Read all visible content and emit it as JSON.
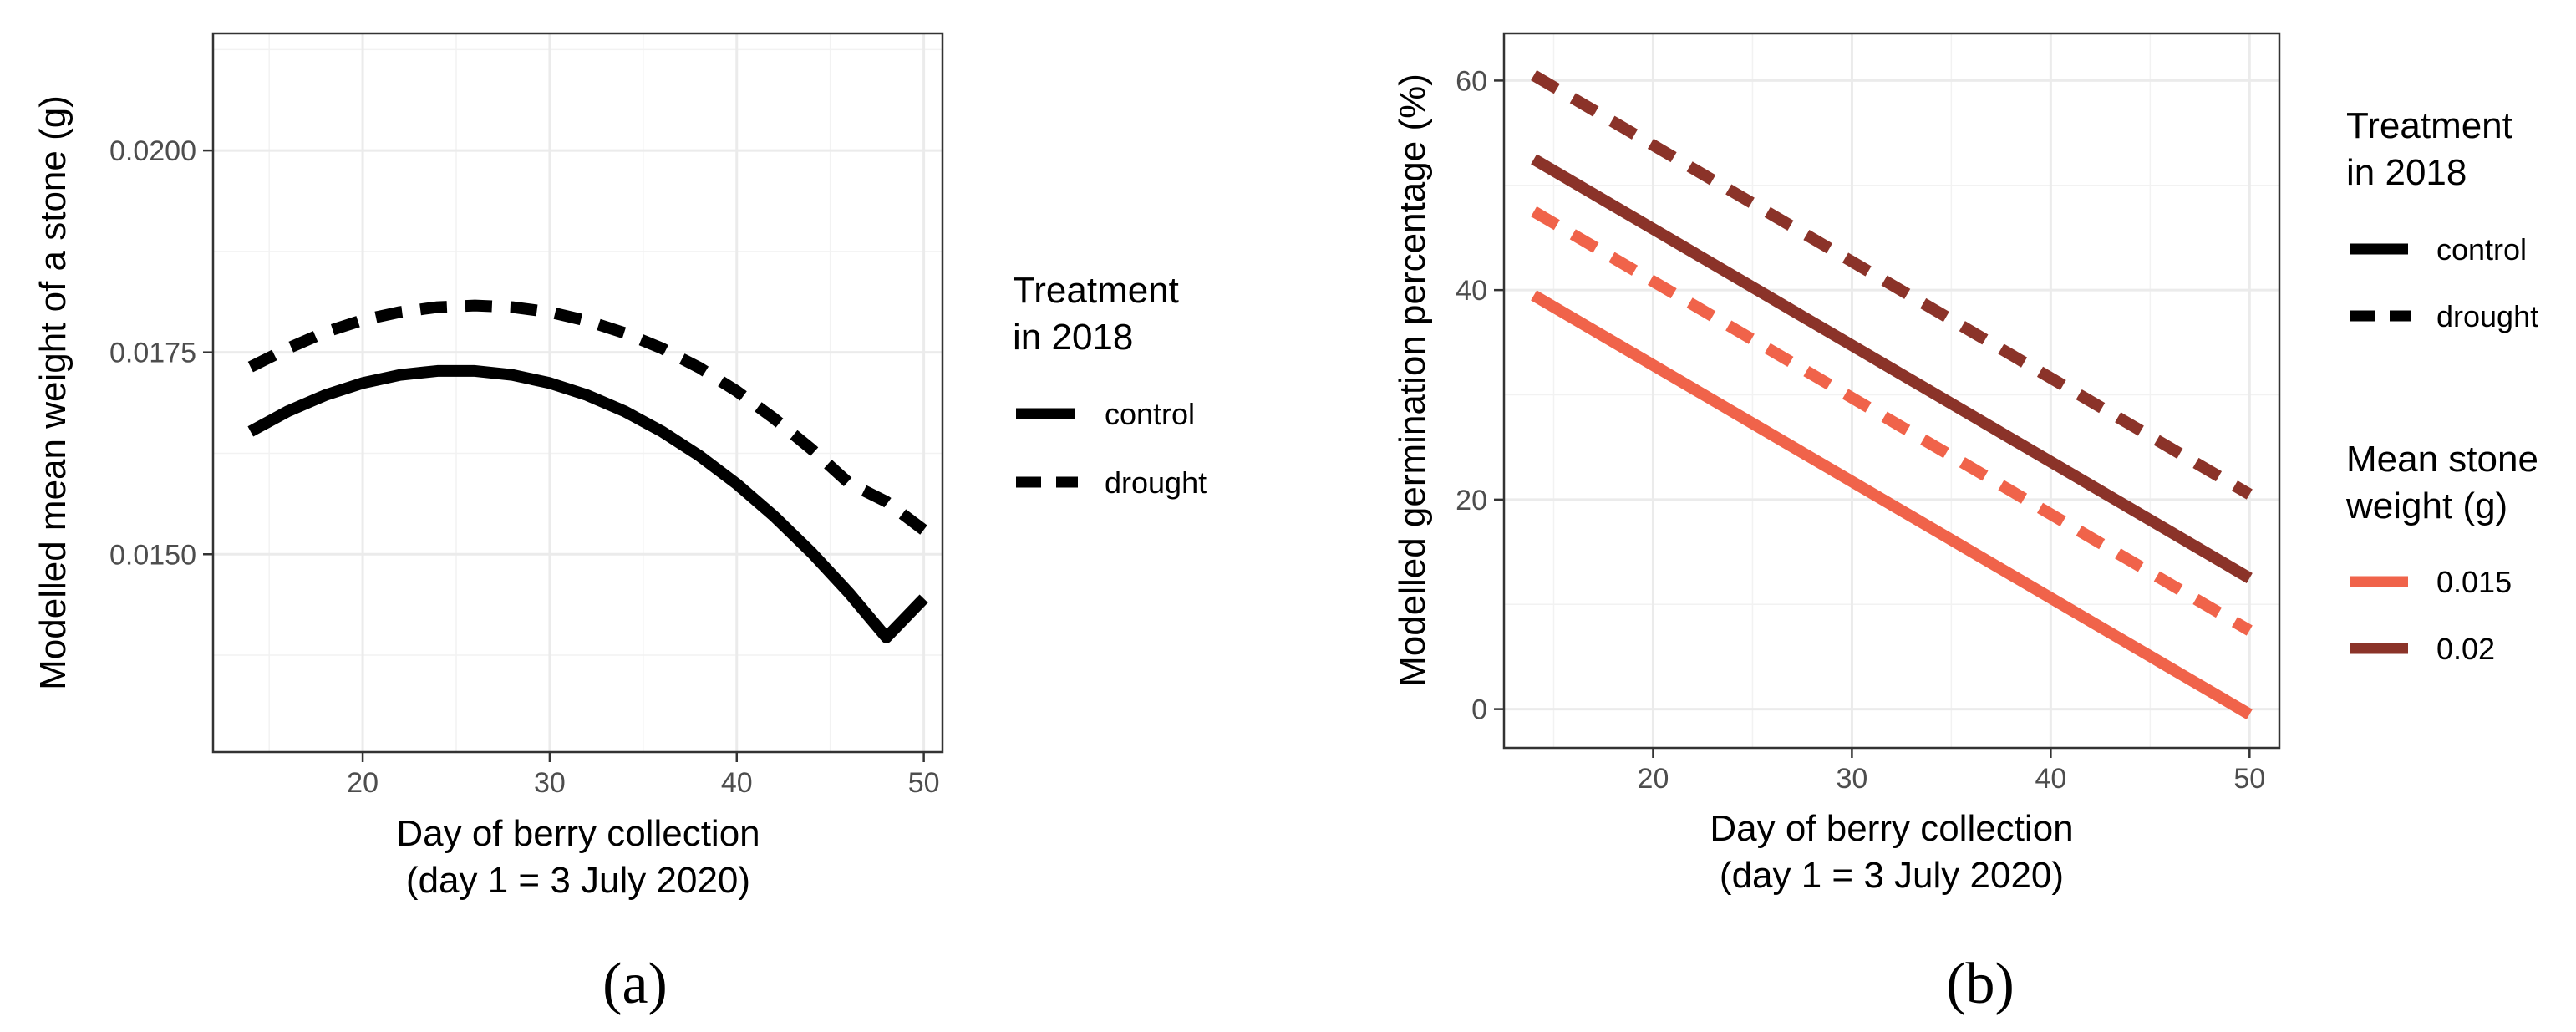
{
  "chart_data": [
    {
      "type": "line",
      "panel_label": "(a)",
      "xlabel_line1": "Day of berry collection",
      "xlabel_line2": "(day 1 = 3 July 2020)",
      "ylabel": "Modelled mean weight of a stone (g)",
      "xlim": [
        12,
        51
      ],
      "ylim": [
        0.01255,
        0.02145
      ],
      "x_ticks": [
        20,
        30,
        40,
        50
      ],
      "y_ticks": [
        0.015,
        0.0175,
        0.02
      ],
      "y_tick_labels": [
        "0.0150",
        "0.0175",
        "0.0200"
      ],
      "grid": true,
      "legend": {
        "title_line1": "Treatment",
        "title_line2": "in 2018",
        "items": [
          {
            "label": "control",
            "style": "solid"
          },
          {
            "label": "drought",
            "style": "dashed"
          }
        ]
      },
      "series": [
        {
          "name": "control",
          "style": "solid",
          "color": "#000000",
          "x": [
            14,
            16,
            18,
            20,
            22,
            24,
            26,
            28,
            30,
            32,
            34,
            36,
            38,
            40,
            42,
            44,
            46,
            48,
            50
          ],
          "y": [
            0.01652,
            0.01677,
            0.01697,
            0.01712,
            0.01722,
            0.01727,
            0.01727,
            0.01722,
            0.01712,
            0.01697,
            0.01677,
            0.01652,
            0.01622,
            0.01587,
            0.01547,
            0.01502,
            0.01452,
            0.01397,
            0.01445
          ]
        },
        {
          "name": "drought",
          "style": "dashed",
          "color": "#000000",
          "x": [
            14,
            16,
            18,
            20,
            22,
            24,
            26,
            28,
            30,
            32,
            34,
            36,
            38,
            40,
            42,
            44,
            46,
            48,
            50
          ],
          "y": [
            0.01732,
            0.01755,
            0.01775,
            0.0179,
            0.018,
            0.01806,
            0.01808,
            0.01806,
            0.018,
            0.01789,
            0.01774,
            0.01755,
            0.01731,
            0.01702,
            0.01668,
            0.0163,
            0.01588,
            0.01565,
            0.0153
          ]
        }
      ]
    },
    {
      "type": "line",
      "panel_label": "(b)",
      "xlabel_line1": "Day of berry collection",
      "xlabel_line2": "(day 1 = 3 July 2020)",
      "ylabel": "Modelled germination percentage (%)",
      "xlim": [
        12.5,
        51.5
      ],
      "ylim": [
        -3.7,
        64.5
      ],
      "x_ticks": [
        20,
        30,
        40,
        50
      ],
      "y_ticks": [
        0,
        20,
        40,
        60
      ],
      "grid": true,
      "legend": {
        "title_line1": "Treatment",
        "title_line2": "in 2018",
        "items": [
          {
            "label": "control",
            "style": "solid"
          },
          {
            "label": "drought",
            "style": "dashed"
          }
        ],
        "title2_line1": "Mean stone",
        "title2_line2": "weight (g)",
        "color_items": [
          {
            "label": "0.015",
            "color": "#f0634a"
          },
          {
            "label": "0.02",
            "color": "#8b3329"
          }
        ]
      },
      "series": [
        {
          "name": "control 0.015",
          "style": "solid",
          "color": "#f0634a",
          "x": [
            14,
            50
          ],
          "y": [
            39.5,
            -0.5
          ]
        },
        {
          "name": "drought 0.015",
          "style": "dashed",
          "color": "#f0634a",
          "x": [
            14,
            50
          ],
          "y": [
            47.5,
            7.5
          ]
        },
        {
          "name": "control 0.02",
          "style": "solid",
          "color": "#8b3329",
          "x": [
            14,
            50
          ],
          "y": [
            52.5,
            12.5
          ]
        },
        {
          "name": "drought 0.02",
          "style": "dashed",
          "color": "#8b3329",
          "x": [
            14,
            50
          ],
          "y": [
            60.5,
            20.5
          ]
        }
      ]
    }
  ]
}
